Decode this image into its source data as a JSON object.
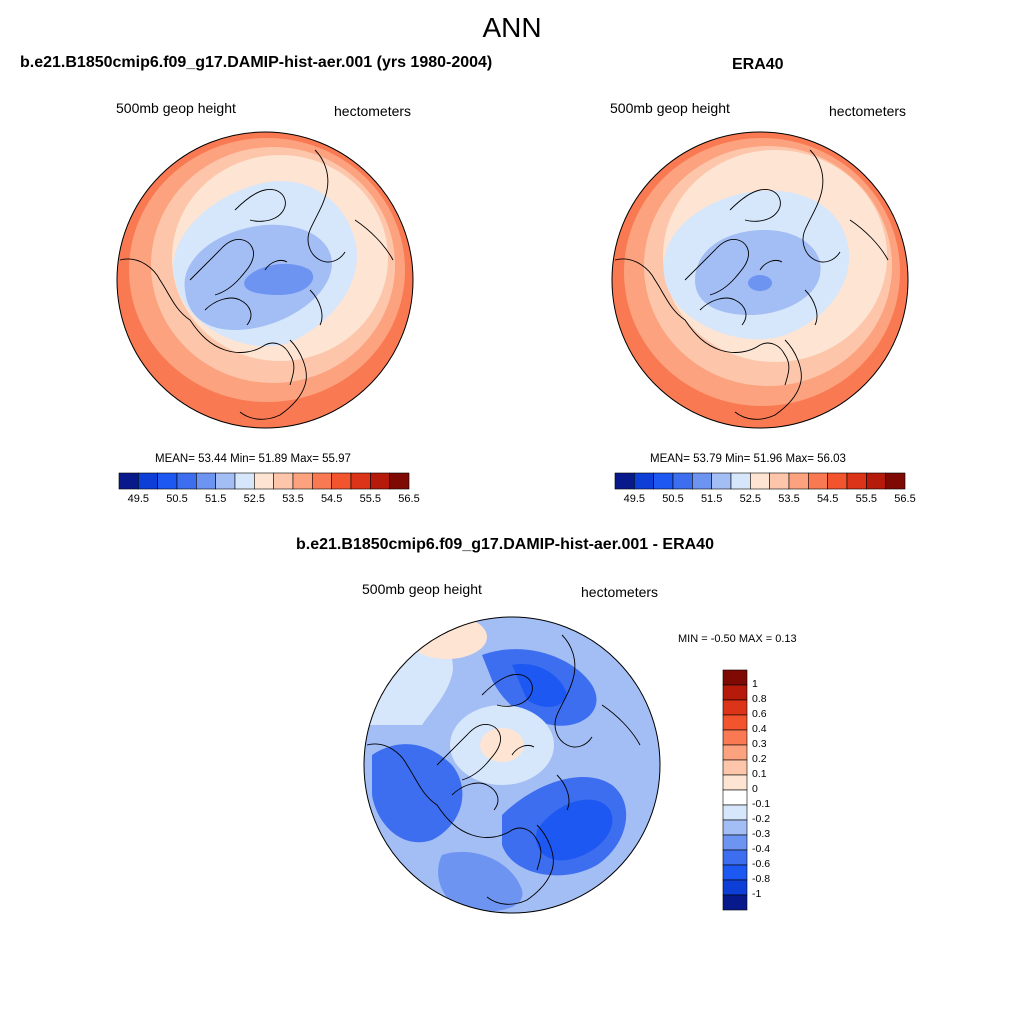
{
  "figure": {
    "title": "ANN"
  },
  "panels": {
    "model": {
      "title": "b.e21.B1850cmip6.f09_g17.DAMIP-hist-aer.001 (yrs 1980-2004)",
      "left_label": "500mb geop height",
      "right_label": "hectometers",
      "stats": "MEAN=  53.44  Min=  51.89  Max=  55.97",
      "colorbar": {
        "colors": [
          "#08198c",
          "#0d3fd6",
          "#1e58f2",
          "#3d6ef0",
          "#6e94f2",
          "#a3bdf5",
          "#d6e6fb",
          "#fde4d3",
          "#fdc6ab",
          "#fca27e",
          "#f97a52",
          "#f2542e",
          "#dc3418",
          "#b51a0a",
          "#7f0a03"
        ],
        "labels": [
          "49.5",
          "50.5",
          "51.5",
          "52.5",
          "53.5",
          "54.5",
          "55.5",
          "56.5"
        ]
      }
    },
    "obs": {
      "title": "ERA40",
      "left_label": "500mb geop height",
      "right_label": "hectometers",
      "stats": "MEAN=  53.79  Min=  51.96  Max=  56.03",
      "colorbar": {
        "colors": [
          "#08198c",
          "#0d3fd6",
          "#1e58f2",
          "#3d6ef0",
          "#6e94f2",
          "#a3bdf5",
          "#d6e6fb",
          "#fde4d3",
          "#fdc6ab",
          "#fca27e",
          "#f97a52",
          "#f2542e",
          "#dc3418",
          "#b51a0a",
          "#7f0a03"
        ],
        "labels": [
          "49.5",
          "50.5",
          "51.5",
          "52.5",
          "53.5",
          "54.5",
          "55.5",
          "56.5"
        ]
      }
    },
    "diff": {
      "title": "b.e21.B1850cmip6.f09_g17.DAMIP-hist-aer.001 - ERA40",
      "left_label": "500mb geop height",
      "right_label": "hectometers",
      "stats": "MIN =  -0.50 MAX =   0.13",
      "colorbar": {
        "colors": [
          "#7f0a03",
          "#b51a0a",
          "#dc3418",
          "#f2542e",
          "#f97a52",
          "#fca27e",
          "#fdc6ab",
          "#fde4d3",
          "#ffffff",
          "#d6e6fb",
          "#a3bdf5",
          "#6e94f2",
          "#3d6ef0",
          "#1e58f2",
          "#0d3fd6",
          "#08198c"
        ],
        "labels": [
          "1",
          "0.8",
          "0.6",
          "0.4",
          "0.3",
          "0.2",
          "0.1",
          "0",
          "-0.1",
          "-0.2",
          "-0.3",
          "-0.4",
          "-0.6",
          "-0.8",
          "-1"
        ]
      }
    }
  },
  "colors": {
    "positive": "#f2542e",
    "negative": "#1e58f2",
    "coast": "#000000"
  }
}
